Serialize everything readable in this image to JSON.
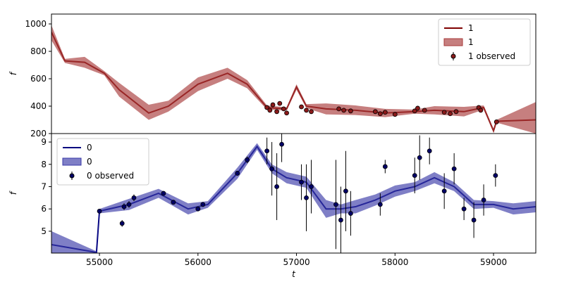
{
  "chart_data": [
    {
      "type": "line",
      "ylabel": "f",
      "legend": "upper right",
      "xlim": [
        54513,
        59429
      ],
      "ylim": [
        200,
        1072
      ],
      "yticks": [
        200,
        400,
        600,
        800,
        1000
      ],
      "series": [
        {
          "name": "1",
          "color": "#7f0000",
          "x": [
            54513,
            54650,
            54850,
            55050,
            55200,
            55500,
            55700,
            56000,
            56300,
            56500,
            56700,
            56900,
            57000,
            57100,
            57300,
            57600,
            57900,
            58200,
            58400,
            58700,
            58900,
            59000,
            59030,
            59429
          ],
          "values": [
            940,
            730,
            720,
            640,
            520,
            350,
            400,
            560,
            640,
            560,
            390,
            380,
            540,
            400,
            380,
            370,
            350,
            360,
            370,
            360,
            390,
            220,
            290,
            300
          ]
        },
        {
          "name": "1",
          "color": "#a83a3a",
          "x": [
            54513,
            54650,
            54850,
            55050,
            55200,
            55500,
            55700,
            56000,
            56300,
            56500,
            56700,
            56900,
            57000,
            57100,
            57300,
            57600,
            57900,
            58200,
            58400,
            58700,
            58900,
            59000,
            59030,
            59429
          ],
          "lower": [
            880,
            715,
            680,
            625,
            470,
            300,
            360,
            510,
            600,
            530,
            375,
            368,
            520,
            385,
            340,
            335,
            320,
            345,
            340,
            325,
            375,
            205,
            280,
            200
          ],
          "upper": [
            990,
            745,
            760,
            655,
            570,
            410,
            440,
            610,
            680,
            590,
            405,
            392,
            560,
            415,
            420,
            405,
            380,
            375,
            400,
            395,
            405,
            235,
            300,
            430
          ]
        },
        {
          "name": "1 observed",
          "color": "#8b1a1a",
          "x": [
            56700,
            56730,
            56760,
            56800,
            56830,
            56870,
            56900,
            57050,
            57100,
            57150,
            57430,
            57480,
            57550,
            57800,
            57850,
            57900,
            58000,
            58200,
            58230,
            58300,
            58500,
            58560,
            58620,
            58850,
            58870,
            59030
          ],
          "values": [
            390,
            370,
            410,
            360,
            420,
            380,
            350,
            395,
            370,
            360,
            380,
            370,
            365,
            360,
            345,
            355,
            340,
            365,
            385,
            370,
            355,
            345,
            360,
            390,
            370,
            285
          ],
          "errors": [
            12,
            10,
            10,
            10,
            10,
            12,
            10,
            10,
            10,
            10,
            8,
            8,
            8,
            10,
            10,
            10,
            10,
            10,
            10,
            10,
            10,
            10,
            10,
            10,
            10,
            10
          ]
        }
      ]
    },
    {
      "type": "line",
      "ylabel": "f",
      "xlabel": "t",
      "legend": "upper left",
      "xlim": [
        54513,
        59429
      ],
      "xticks": [
        55000,
        56000,
        57000,
        58000,
        59000
      ],
      "ylim": [
        4.02,
        9.38
      ],
      "yticks": [
        5,
        6,
        7,
        8,
        9
      ],
      "series": [
        {
          "name": "0",
          "color": "#00007f",
          "x": [
            54513,
            54970,
            55000,
            55300,
            55600,
            55900,
            56100,
            56400,
            56600,
            56750,
            56900,
            57100,
            57300,
            57450,
            57600,
            57800,
            58000,
            58200,
            58400,
            58600,
            58800,
            59000,
            59200,
            59429
          ],
          "values": [
            4.4,
            4.05,
            5.9,
            6.2,
            6.7,
            6.0,
            6.2,
            7.6,
            8.8,
            7.8,
            7.4,
            7.2,
            6.0,
            6.0,
            6.1,
            6.4,
            6.8,
            7.0,
            7.4,
            7.0,
            6.2,
            6.2,
            6.0,
            6.1
          ]
        },
        {
          "name": "0",
          "color": "#3a3aa8",
          "x": [
            54513,
            54970,
            55000,
            55300,
            55600,
            55900,
            56100,
            56400,
            56600,
            56750,
            56900,
            57100,
            57300,
            57450,
            57600,
            57800,
            58000,
            58200,
            58400,
            58600,
            58800,
            59000,
            59200,
            59429
          ],
          "lower": [
            3.8,
            4.0,
            5.8,
            5.95,
            6.5,
            5.75,
            6.05,
            7.35,
            8.65,
            7.6,
            7.15,
            6.95,
            5.6,
            5.8,
            5.8,
            6.15,
            6.55,
            6.8,
            7.15,
            6.8,
            6.0,
            6.05,
            5.75,
            5.85
          ],
          "upper": [
            5.0,
            4.1,
            6.0,
            6.45,
            6.9,
            6.25,
            6.35,
            7.85,
            8.95,
            8.0,
            7.65,
            7.45,
            6.4,
            6.2,
            6.4,
            6.65,
            7.05,
            7.2,
            7.65,
            7.2,
            6.4,
            6.35,
            6.25,
            6.35
          ]
        },
        {
          "name": "0 observed",
          "color": "#000066",
          "x": [
            55000,
            55230,
            55250,
            55300,
            55350,
            55650,
            55750,
            56000,
            56050,
            56400,
            56500,
            56700,
            56750,
            56800,
            56850,
            57050,
            57100,
            57150,
            57400,
            57450,
            57500,
            57550,
            57850,
            57900,
            58200,
            58250,
            58350,
            58500,
            58600,
            58700,
            58800,
            58900,
            59020
          ],
          "values": [
            5.9,
            5.35,
            6.1,
            6.2,
            6.5,
            6.7,
            6.3,
            6.0,
            6.2,
            7.6,
            8.2,
            8.6,
            7.8,
            7.0,
            8.9,
            7.2,
            6.5,
            7.0,
            6.2,
            5.5,
            6.8,
            5.8,
            6.2,
            7.9,
            7.5,
            8.3,
            8.6,
            6.8,
            7.8,
            6.0,
            5.5,
            6.4,
            7.5
          ],
          "errors": [
            0.1,
            0.15,
            0.15,
            0.15,
            0.15,
            0.1,
            0.1,
            0.1,
            0.1,
            0.1,
            0.15,
            0.6,
            1.2,
            1.5,
            0.8,
            0.8,
            1.5,
            1.2,
            2.0,
            1.5,
            1.8,
            1.0,
            0.5,
            0.3,
            0.8,
            1.0,
            0.6,
            0.8,
            0.7,
            0.5,
            0.8,
            0.7,
            0.5
          ]
        }
      ]
    }
  ]
}
